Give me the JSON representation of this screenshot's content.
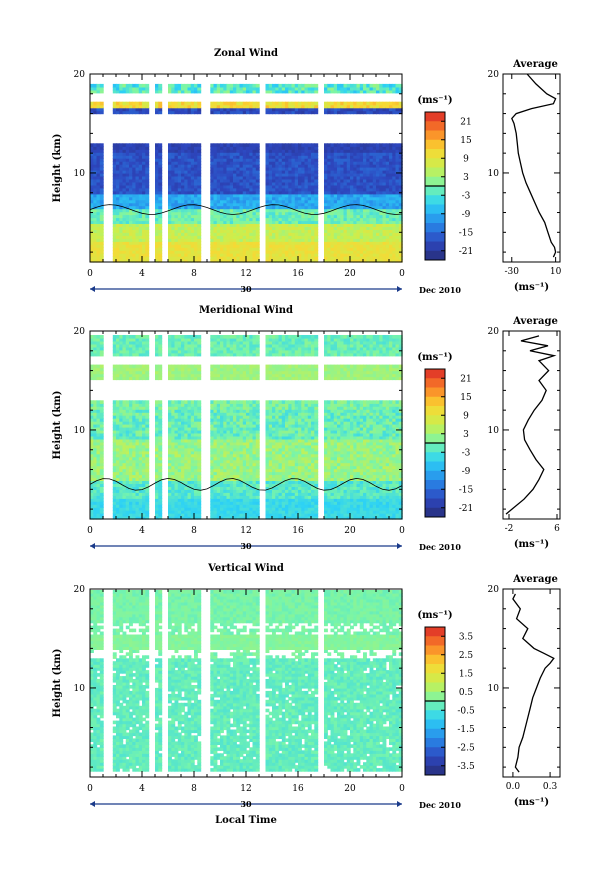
{
  "chart_data": [
    {
      "id": "zonal",
      "type": "heatmap",
      "title": "Zonal Wind",
      "ylabel": "Height (km)",
      "xlabel": "",
      "xticks": [
        "0",
        "4",
        "8",
        "12",
        "16",
        "20",
        "0"
      ],
      "yticks": [
        "10",
        "20"
      ],
      "xlim": [
        0,
        24
      ],
      "ylim": [
        1,
        20
      ],
      "date_marker": "30",
      "date_label": "Dec 2010",
      "colorbar": {
        "unit": "(ms⁻¹)",
        "ticks": [
          "21",
          "15",
          "9",
          "3",
          "-3",
          "-9",
          "-15",
          "-21"
        ],
        "range": [
          -24,
          24
        ]
      },
      "data_gaps_hours": [
        [
          1.0,
          1.7
        ],
        [
          4.4,
          4.9
        ],
        [
          5.6,
          6.1
        ],
        [
          8.5,
          9.2
        ],
        [
          13.0,
          13.6
        ],
        [
          17.4,
          18.0
        ]
      ],
      "profile": {
        "title": "Average",
        "xlabel": "(ms⁻¹)",
        "xticks": [
          "-30",
          "10"
        ],
        "xlim": [
          -38,
          14
        ],
        "yticks": [
          "10",
          "20"
        ],
        "heights": [
          1.5,
          2,
          2.5,
          3,
          4,
          5,
          6,
          7,
          8,
          9,
          10,
          11,
          12,
          13,
          14,
          15,
          15.5,
          16,
          16.5,
          17,
          17.5,
          18,
          19,
          20
        ],
        "values": [
          8,
          10,
          9,
          6,
          3,
          0,
          -5,
          -9,
          -13,
          -17,
          -20,
          -22,
          -24,
          -25,
          -26,
          -28,
          -30,
          -26,
          -12,
          8,
          10,
          2,
          -8,
          -16
        ]
      }
    },
    {
      "id": "meridional",
      "type": "heatmap",
      "title": "Meridional Wind",
      "ylabel": "Height (km)",
      "xlabel": "",
      "xticks": [
        "0",
        "4",
        "8",
        "12",
        "16",
        "20",
        "0"
      ],
      "yticks": [
        "10",
        "20"
      ],
      "xlim": [
        0,
        24
      ],
      "ylim": [
        1,
        20
      ],
      "date_marker": "30",
      "date_label": "Dec 2010",
      "colorbar": {
        "unit": "(ms⁻¹)",
        "ticks": [
          "21",
          "15",
          "9",
          "3",
          "-3",
          "-9",
          "-15",
          "-21"
        ],
        "range": [
          -24,
          24
        ]
      },
      "data_gaps_hours": [
        [
          1.0,
          1.7
        ],
        [
          4.4,
          4.9
        ],
        [
          5.6,
          6.1
        ],
        [
          8.5,
          9.2
        ],
        [
          13.0,
          13.6
        ],
        [
          17.4,
          18.0
        ]
      ],
      "profile": {
        "title": "Average",
        "xlabel": "(ms⁻¹)",
        "xticks": [
          "-2",
          "6"
        ],
        "xlim": [
          -3,
          6.5
        ],
        "yticks": [
          "10",
          "20"
        ],
        "heights": [
          1.5,
          2,
          3,
          4,
          5,
          6,
          7,
          8,
          9,
          10,
          11,
          12,
          13,
          14,
          15,
          16,
          17,
          17.5,
          18,
          18.5,
          19,
          19.5
        ],
        "values": [
          -2.5,
          -1.5,
          0.5,
          2,
          3,
          3.8,
          2.5,
          1.5,
          0.6,
          0.4,
          1.2,
          2.2,
          3.5,
          4.2,
          3.0,
          4.6,
          3.0,
          5.5,
          1.5,
          4.5,
          0.0,
          3.0
        ]
      }
    },
    {
      "id": "vertical",
      "type": "heatmap",
      "title": "Vertical Wind",
      "ylabel": "Height (km)",
      "xlabel": "Local Time",
      "xticks": [
        "0",
        "4",
        "8",
        "12",
        "16",
        "20",
        "0"
      ],
      "yticks": [
        "10",
        "20"
      ],
      "xlim": [
        0,
        24
      ],
      "ylim": [
        1,
        20
      ],
      "date_marker": "30",
      "date_label": "Dec 2010",
      "colorbar": {
        "unit": "(ms⁻¹)",
        "ticks": [
          "3.5",
          "2.5",
          "1.5",
          "0.5",
          "-0.5",
          "-1.5",
          "-2.5",
          "-3.5"
        ],
        "range": [
          -4,
          4
        ]
      },
      "data_gaps_hours": [
        [
          1.0,
          1.7
        ],
        [
          4.4,
          4.9
        ],
        [
          5.6,
          6.1
        ],
        [
          8.5,
          9.2
        ],
        [
          13.0,
          13.6
        ],
        [
          17.4,
          18.0
        ]
      ],
      "profile": {
        "title": "Average",
        "xlabel": "(ms⁻¹)",
        "xticks": [
          "0.0",
          "0.3"
        ],
        "xlim": [
          -0.08,
          0.38
        ],
        "yticks": [
          "10",
          "20"
        ],
        "heights": [
          1.5,
          2,
          3,
          4,
          5,
          6,
          7,
          8,
          9,
          10,
          11,
          12,
          12.5,
          13,
          13.5,
          14,
          15,
          16,
          17,
          18,
          19,
          19.5
        ],
        "values": [
          0.05,
          0.02,
          0.04,
          0.05,
          0.08,
          0.1,
          0.12,
          0.14,
          0.16,
          0.19,
          0.22,
          0.26,
          0.3,
          0.33,
          0.25,
          0.17,
          0.08,
          0.12,
          0.03,
          0.06,
          0.0,
          0.02
        ]
      }
    }
  ]
}
